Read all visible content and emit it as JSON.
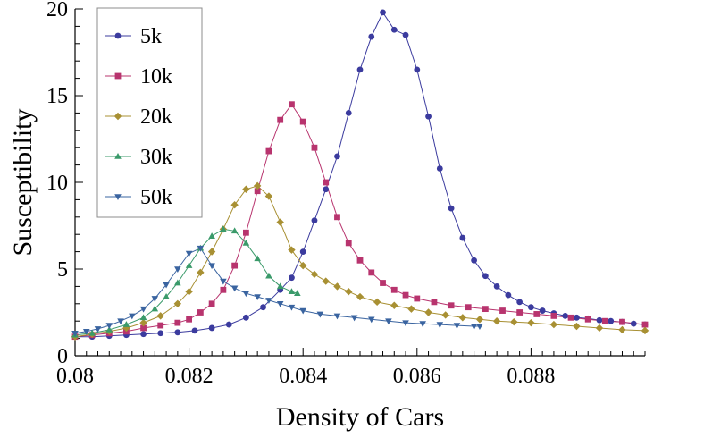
{
  "chart_data": {
    "type": "line",
    "title": "",
    "xlabel": "Density of Cars",
    "ylabel": "Susceptibility",
    "xlim": [
      0.08,
      0.09
    ],
    "ylim": [
      0,
      20
    ],
    "x_ticks": [
      0.08,
      0.082,
      0.084,
      0.086,
      0.088
    ],
    "x_tick_labels": [
      "0.08",
      "0.082",
      "0.084",
      "0.086",
      "0.088"
    ],
    "y_ticks": [
      0,
      5,
      10,
      15,
      20
    ],
    "y_tick_labels": [
      "0",
      "5",
      "10",
      "15",
      "20"
    ],
    "grid": false,
    "legend_position": "top-left",
    "series": [
      {
        "name": "5k",
        "color": "#3b3b9e",
        "marker": "circle",
        "x": [
          0.08,
          0.0803,
          0.0806,
          0.0809,
          0.0812,
          0.0815,
          0.0818,
          0.0821,
          0.0824,
          0.0827,
          0.083,
          0.0833,
          0.0836,
          0.0838,
          0.084,
          0.0842,
          0.0844,
          0.0846,
          0.0848,
          0.085,
          0.0852,
          0.0854,
          0.0856,
          0.0858,
          0.086,
          0.0862,
          0.0864,
          0.0866,
          0.0868,
          0.087,
          0.0872,
          0.0874,
          0.0876,
          0.0878,
          0.088,
          0.0882,
          0.0884,
          0.0886,
          0.0888,
          0.089,
          0.0892,
          0.0894,
          0.0896,
          0.0898,
          0.09
        ],
        "y": [
          1.1,
          1.1,
          1.15,
          1.2,
          1.25,
          1.3,
          1.35,
          1.45,
          1.6,
          1.8,
          2.2,
          2.8,
          3.8,
          4.5,
          6.0,
          7.8,
          9.6,
          11.5,
          14.0,
          16.5,
          18.4,
          19.8,
          18.8,
          18.5,
          16.5,
          13.8,
          10.8,
          8.5,
          6.8,
          5.5,
          4.6,
          4.0,
          3.5,
          3.1,
          2.8,
          2.6,
          2.45,
          2.3,
          2.2,
          2.15,
          2.05,
          2.0,
          1.95,
          1.85,
          1.8
        ]
      },
      {
        "name": "10k",
        "color": "#b8346e",
        "marker": "square",
        "x": [
          0.08,
          0.0803,
          0.0806,
          0.0809,
          0.0812,
          0.0815,
          0.0818,
          0.082,
          0.0822,
          0.0824,
          0.0826,
          0.0828,
          0.083,
          0.0832,
          0.0834,
          0.0836,
          0.0838,
          0.084,
          0.0842,
          0.0844,
          0.0846,
          0.0848,
          0.085,
          0.0852,
          0.0854,
          0.0856,
          0.0858,
          0.086,
          0.0863,
          0.0866,
          0.0869,
          0.0872,
          0.0875,
          0.0878,
          0.0881,
          0.0884,
          0.0887,
          0.089,
          0.0893,
          0.0896,
          0.09
        ],
        "y": [
          1.1,
          1.2,
          1.3,
          1.4,
          1.6,
          1.75,
          1.9,
          2.1,
          2.5,
          3.0,
          3.8,
          5.2,
          7.1,
          9.5,
          11.8,
          13.6,
          14.5,
          13.5,
          12.0,
          10.0,
          8.0,
          6.5,
          5.5,
          4.8,
          4.2,
          3.8,
          3.5,
          3.3,
          3.1,
          2.9,
          2.8,
          2.7,
          2.6,
          2.5,
          2.4,
          2.3,
          2.2,
          2.1,
          2.0,
          1.95,
          1.8
        ]
      },
      {
        "name": "20k",
        "color": "#a89033",
        "marker": "diamond",
        "x": [
          0.08,
          0.0803,
          0.0806,
          0.0809,
          0.0812,
          0.0815,
          0.0818,
          0.082,
          0.0822,
          0.0824,
          0.0826,
          0.0828,
          0.083,
          0.0832,
          0.0834,
          0.0836,
          0.0838,
          0.084,
          0.0842,
          0.0844,
          0.0846,
          0.0848,
          0.085,
          0.0853,
          0.0856,
          0.0859,
          0.0862,
          0.0865,
          0.0868,
          0.0871,
          0.0874,
          0.0877,
          0.088,
          0.0884,
          0.0888,
          0.0892,
          0.0896,
          0.09
        ],
        "y": [
          1.1,
          1.25,
          1.4,
          1.6,
          1.9,
          2.3,
          3.0,
          3.7,
          4.8,
          6.0,
          7.3,
          8.7,
          9.6,
          9.8,
          9.2,
          7.7,
          6.1,
          5.2,
          4.7,
          4.3,
          4.0,
          3.7,
          3.4,
          3.1,
          2.9,
          2.7,
          2.5,
          2.35,
          2.2,
          2.1,
          2.0,
          1.95,
          1.9,
          1.8,
          1.7,
          1.6,
          1.5,
          1.45
        ]
      },
      {
        "name": "30k",
        "color": "#3a9a6a",
        "marker": "triangle-up",
        "x": [
          0.08,
          0.0803,
          0.0806,
          0.0809,
          0.0812,
          0.0814,
          0.0816,
          0.0818,
          0.082,
          0.0822,
          0.0824,
          0.0826,
          0.0828,
          0.083,
          0.0832,
          0.0834,
          0.0836,
          0.0838,
          0.0839
        ],
        "y": [
          1.2,
          1.3,
          1.5,
          1.8,
          2.2,
          2.7,
          3.4,
          4.2,
          5.2,
          6.2,
          6.9,
          7.3,
          7.2,
          6.5,
          5.6,
          4.6,
          4.0,
          3.7,
          3.6
        ]
      },
      {
        "name": "50k",
        "color": "#3a64a0",
        "marker": "triangle-down",
        "x": [
          0.08,
          0.0802,
          0.0804,
          0.0806,
          0.0808,
          0.081,
          0.0812,
          0.0814,
          0.0816,
          0.0818,
          0.082,
          0.0822,
          0.0824,
          0.0826,
          0.0828,
          0.083,
          0.0832,
          0.0834,
          0.0836,
          0.0838,
          0.084,
          0.0843,
          0.0846,
          0.0849,
          0.0852,
          0.0855,
          0.0858,
          0.0861,
          0.0864,
          0.0867,
          0.087,
          0.0871
        ],
        "y": [
          1.3,
          1.4,
          1.55,
          1.75,
          2.0,
          2.3,
          2.7,
          3.3,
          4.1,
          5.0,
          5.9,
          6.2,
          5.2,
          4.3,
          3.9,
          3.6,
          3.4,
          3.2,
          3.0,
          2.8,
          2.6,
          2.4,
          2.3,
          2.2,
          2.1,
          2.0,
          1.9,
          1.85,
          1.8,
          1.75,
          1.7,
          1.7
        ]
      }
    ]
  }
}
